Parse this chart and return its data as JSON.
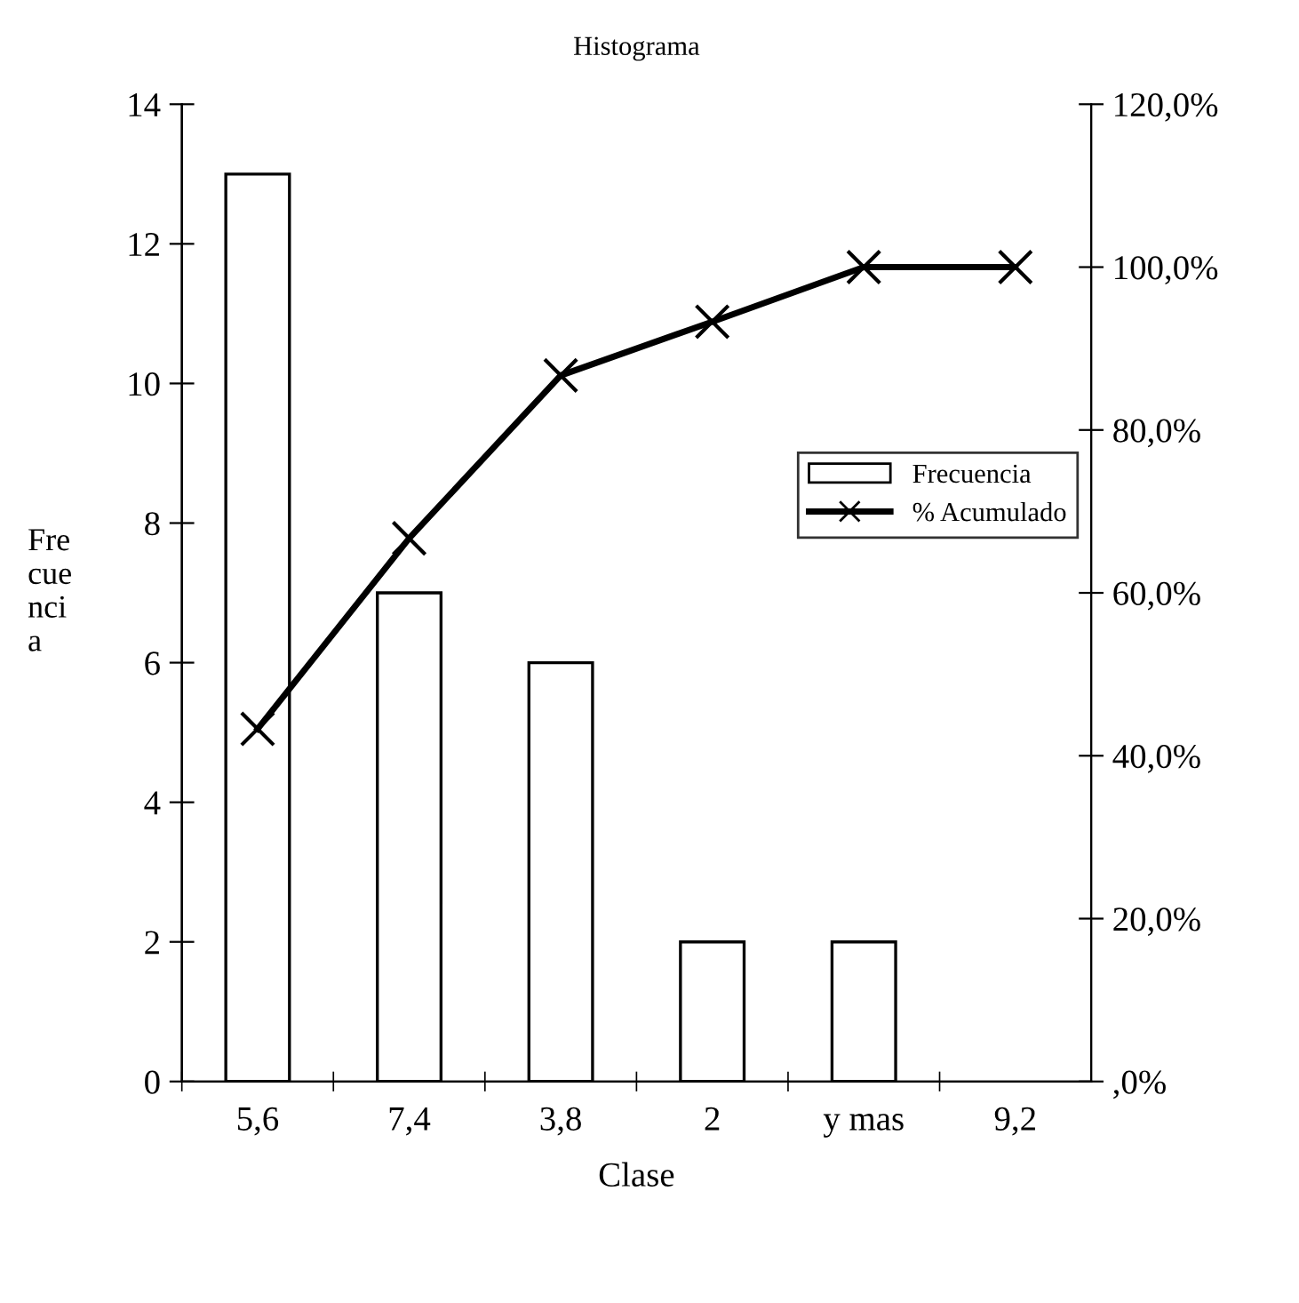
{
  "chart_data": {
    "type": "bar",
    "title": "Histograma",
    "xlabel": "Clase",
    "ylabel": "Frecuencia",
    "categories": [
      "5,6",
      "7,4",
      "3,8",
      "2",
      "y mas",
      "9,2"
    ],
    "series": [
      {
        "name": "Frecuencia",
        "color": "#ffffff",
        "values": [
          13,
          7,
          6,
          2,
          2,
          0
        ]
      },
      {
        "name": "% Acumulado",
        "type": "line",
        "axis": "y2",
        "color": "#000000",
        "marker": "cross",
        "line_style": "solid",
        "values": [
          43.3,
          66.7,
          86.7,
          93.3,
          100,
          100
        ]
      }
    ],
    "ylim": [
      0,
      14
    ],
    "yticks": [
      0,
      2,
      4,
      6,
      8,
      10,
      12,
      14
    ],
    "y2lim": [
      0,
      120
    ],
    "y2ticks": [
      {
        "value": 0,
        "label": ",0%"
      },
      {
        "value": 20,
        "label": "20,0%"
      },
      {
        "value": 40,
        "label": "40,0%"
      },
      {
        "value": 60,
        "label": "60,0%"
      },
      {
        "value": 80,
        "label": "80,0%"
      },
      {
        "value": 100,
        "label": "100,0%"
      },
      {
        "value": 120,
        "label": "120,0%"
      }
    ],
    "grid": false,
    "legend": "right"
  }
}
